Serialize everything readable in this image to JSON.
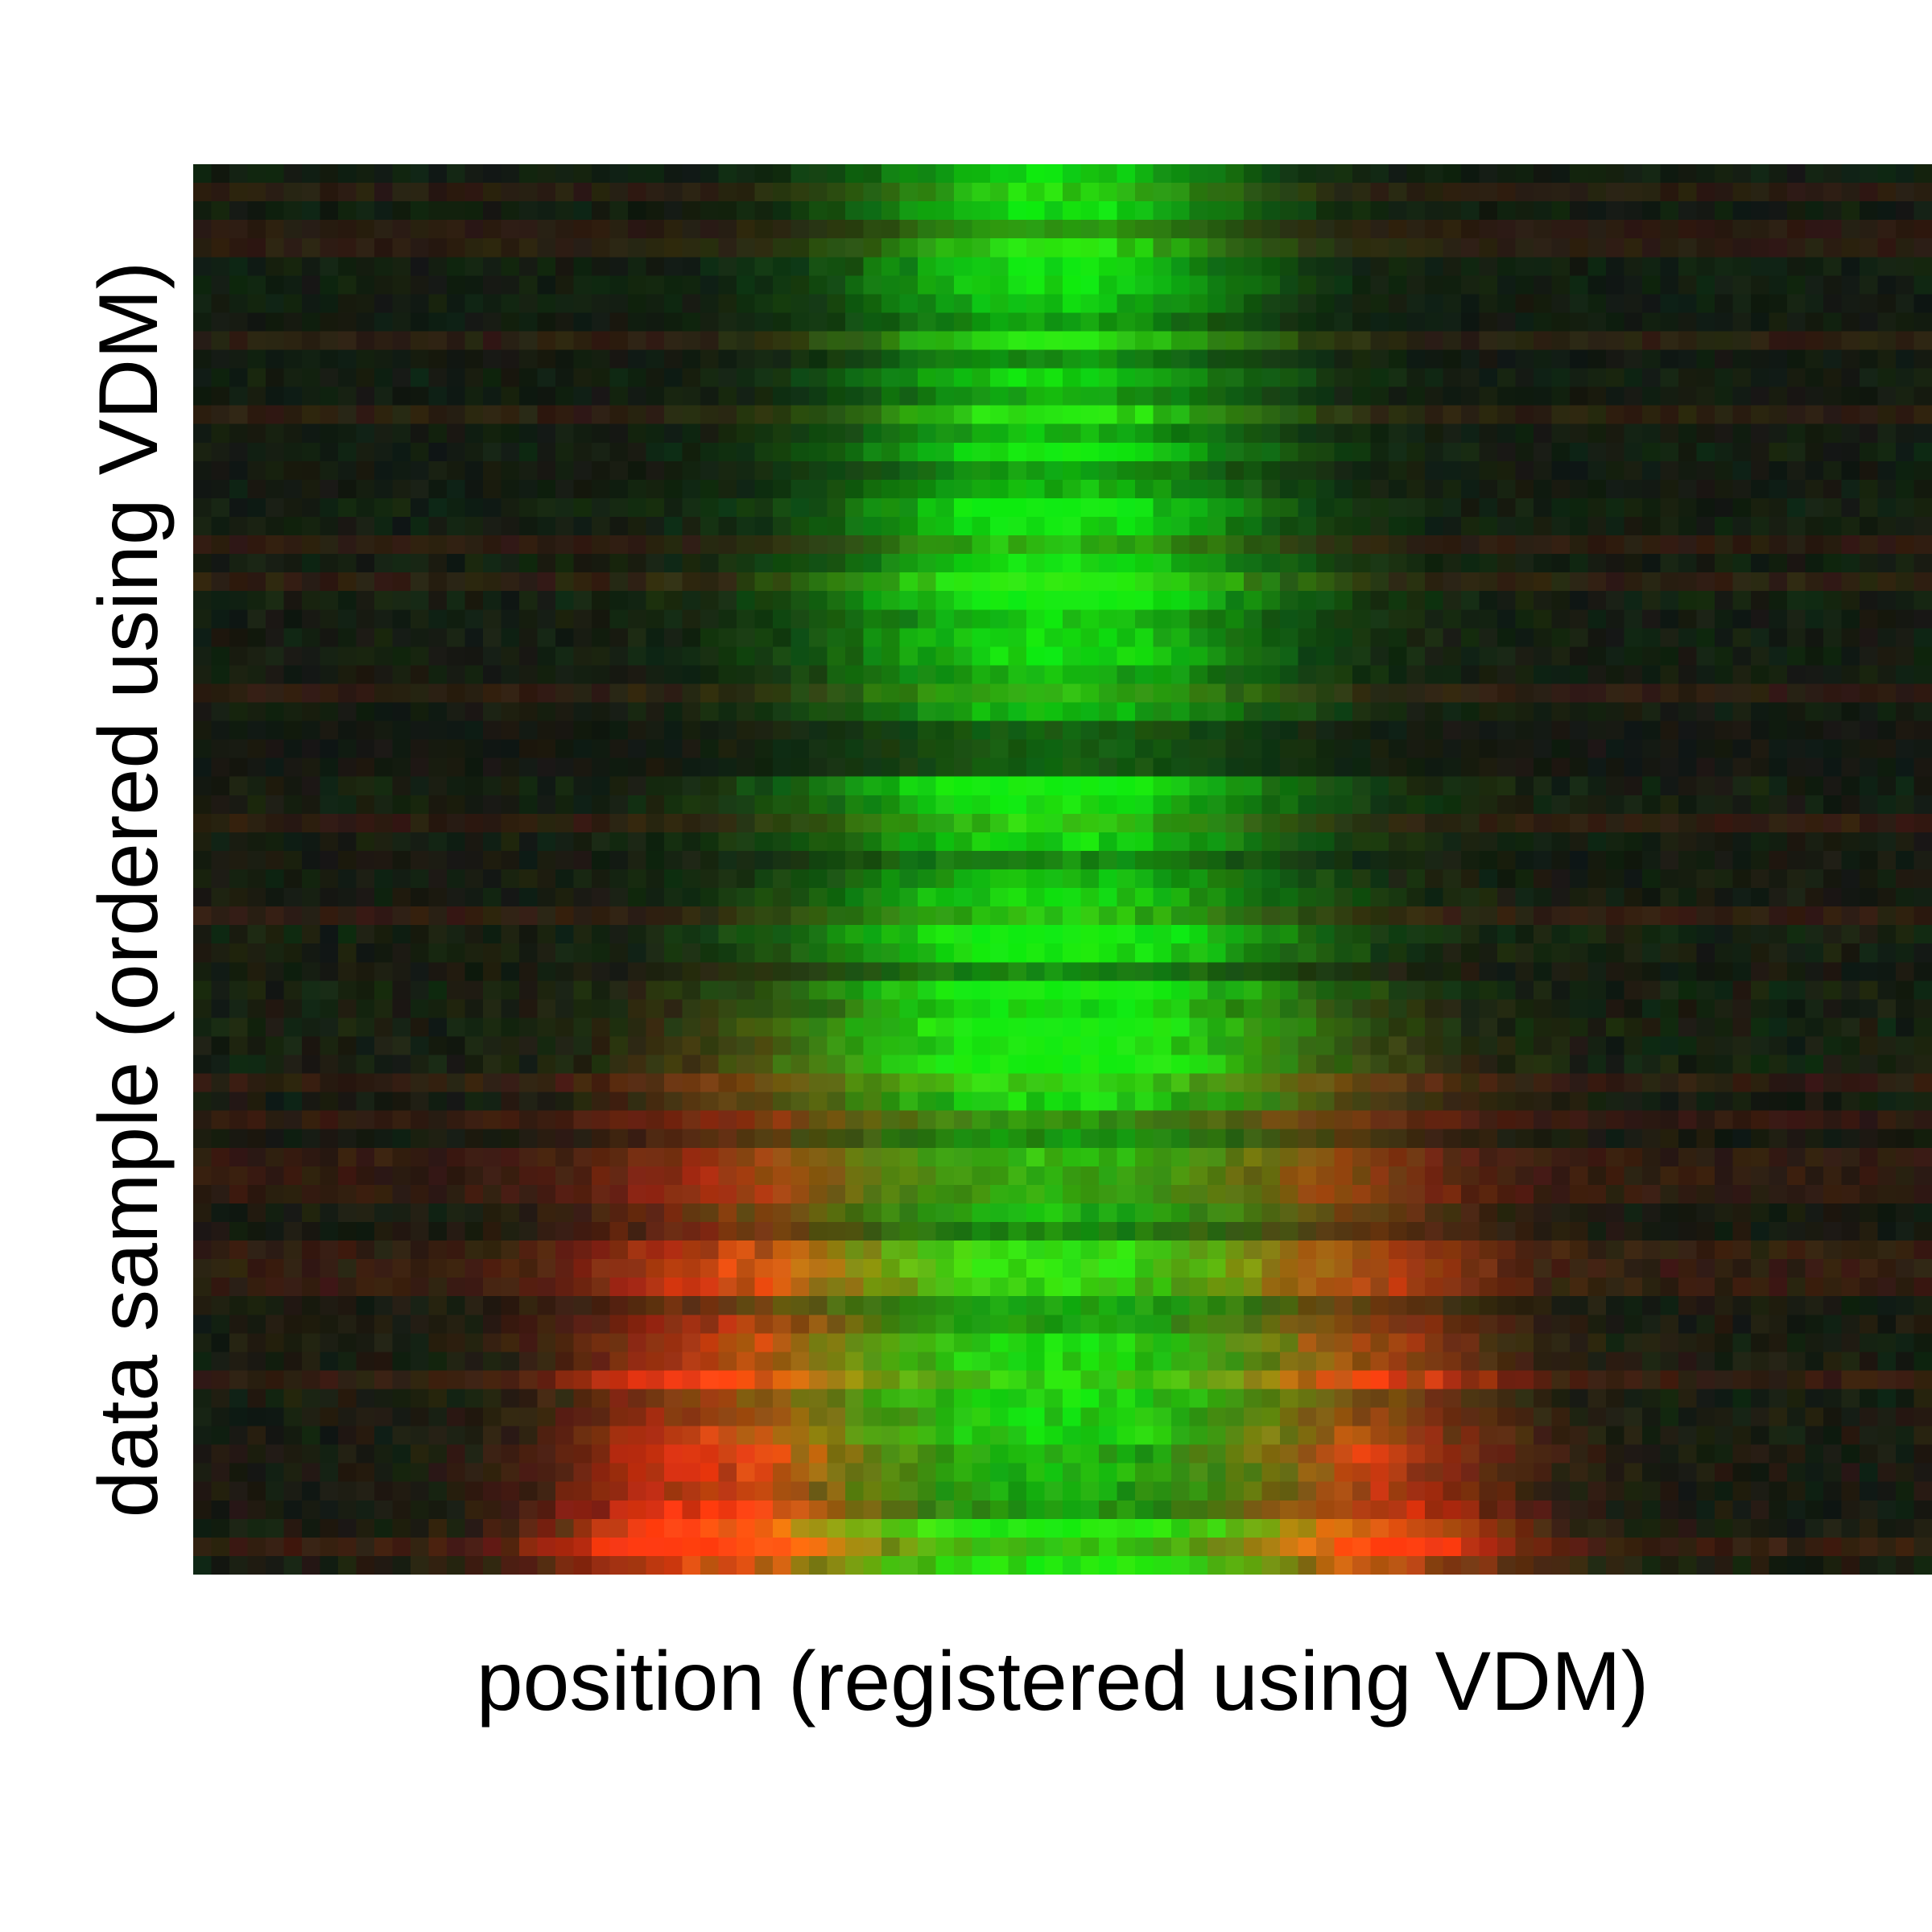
{
  "chart_data": {
    "type": "heatmap",
    "title": "",
    "xlabel": "position (registered using VDM)",
    "ylabel": "data sample (ordered using VDM)",
    "grid": false,
    "legend": "none",
    "colormap": {
      "channels": [
        "green",
        "red"
      ],
      "background": "#0b1a05",
      "green_peak": "#1fe81a",
      "red_peak": "#ff3a0a"
    },
    "n_rows": 76,
    "n_cols": 96,
    "green_center_col": 47,
    "red_lobe_cols": [
      28,
      65
    ]
  }
}
